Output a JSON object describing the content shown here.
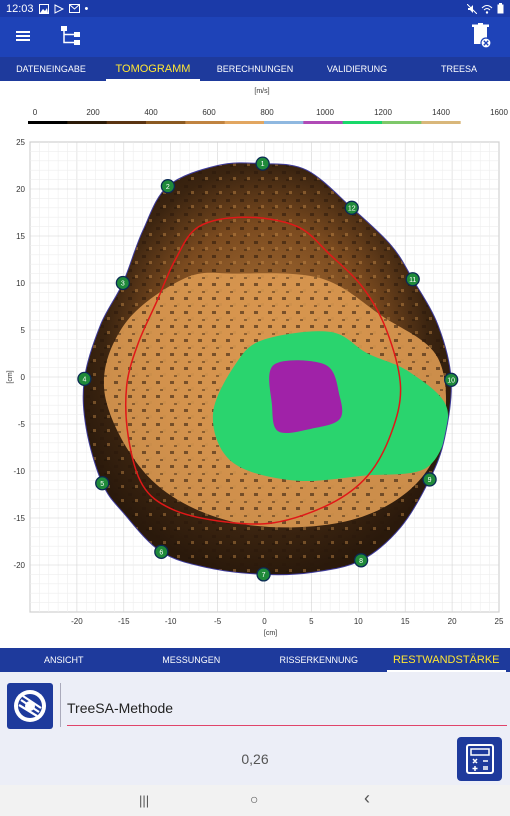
{
  "status": {
    "time": "12:03",
    "dot": "•"
  },
  "tabs": [
    {
      "label": "DATENEINGABE",
      "active": false
    },
    {
      "label": "TOMOGRAMM",
      "active": true
    },
    {
      "label": "BERECHNUNGEN",
      "active": false
    },
    {
      "label": "VALIDIERUNG",
      "active": false
    },
    {
      "label": "TREESA",
      "active": false
    }
  ],
  "colorbar": {
    "unit": "[m/s]",
    "ticks": [
      "0",
      "200",
      "400",
      "600",
      "800",
      "1000",
      "1200",
      "1400",
      "1600"
    ],
    "colors": [
      "#000000",
      "#2a1a08",
      "#5a3412",
      "#8b5a22",
      "#c08340",
      "#e2a660",
      "#8fb8e0",
      "#b04ab6",
      "#18d86a",
      "#7ec86a",
      "#d9b77a",
      "#ffffff"
    ]
  },
  "chart_data": {
    "type": "tomogram",
    "xlabel": "[cm]",
    "ylabel": "[cm]",
    "xlim": [
      -25,
      25
    ],
    "ylim": [
      -25,
      25
    ],
    "xticks": [
      "-20",
      "-15",
      "-10",
      "-5",
      "0",
      "5",
      "10",
      "15",
      "20",
      "25"
    ],
    "yticks": [
      "25",
      "20",
      "15",
      "10",
      "5",
      "0",
      "-5",
      "-10",
      "-15",
      "-20"
    ],
    "grid": true,
    "sensors": [
      {
        "id": "1",
        "x": -0.2,
        "y": 22.7
      },
      {
        "id": "2",
        "x": -10.3,
        "y": 20.3
      },
      {
        "id": "3",
        "x": -15.1,
        "y": 10.0
      },
      {
        "id": "4",
        "x": -19.2,
        "y": -0.2
      },
      {
        "id": "5",
        "x": -17.3,
        "y": -11.3
      },
      {
        "id": "6",
        "x": -11.0,
        "y": -18.6
      },
      {
        "id": "7",
        "x": -0.1,
        "y": -21.0
      },
      {
        "id": "8",
        "x": 10.3,
        "y": -19.5
      },
      {
        "id": "9",
        "x": 17.6,
        "y": -10.9
      },
      {
        "id": "10",
        "x": 19.9,
        "y": -0.3
      },
      {
        "id": "11",
        "x": 15.8,
        "y": 10.4
      },
      {
        "id": "12",
        "x": 9.3,
        "y": 18.0
      }
    ],
    "outline": [
      [
        -0.2,
        22.7
      ],
      [
        4.5,
        22.0
      ],
      [
        9.3,
        18.0
      ],
      [
        13.5,
        14.0
      ],
      [
        15.8,
        10.4
      ],
      [
        18.5,
        5.5
      ],
      [
        19.9,
        -0.3
      ],
      [
        19.2,
        -6.5
      ],
      [
        17.6,
        -10.9
      ],
      [
        14.5,
        -16.0
      ],
      [
        10.3,
        -19.5
      ],
      [
        5.0,
        -20.8
      ],
      [
        -0.1,
        -21.0
      ],
      [
        -6.0,
        -20.3
      ],
      [
        -11.0,
        -18.6
      ],
      [
        -15.0,
        -14.5
      ],
      [
        -17.3,
        -11.3
      ],
      [
        -19.0,
        -5.5
      ],
      [
        -19.2,
        -0.2
      ],
      [
        -17.5,
        5.5
      ],
      [
        -15.1,
        10.0
      ],
      [
        -13.0,
        15.5
      ],
      [
        -10.3,
        20.3
      ],
      [
        -5.0,
        22.5
      ]
    ],
    "red_contour": [
      [
        -2.0,
        17.0
      ],
      [
        3.5,
        16.0
      ],
      [
        7.0,
        13.0
      ],
      [
        10.5,
        9.5
      ],
      [
        13.0,
        5.0
      ],
      [
        14.5,
        -1.0
      ],
      [
        13.5,
        -6.0
      ],
      [
        11.0,
        -10.5
      ],
      [
        7.0,
        -13.5
      ],
      [
        1.0,
        -15.5
      ],
      [
        -5.0,
        -15.3
      ],
      [
        -10.0,
        -14.0
      ],
      [
        -13.0,
        -11.5
      ],
      [
        -14.5,
        -6.5
      ],
      [
        -14.7,
        -1.0
      ],
      [
        -13.5,
        3.5
      ],
      [
        -11.5,
        8.0
      ],
      [
        -9.5,
        12.5
      ],
      [
        -7.0,
        16.0
      ]
    ],
    "zones": {
      "orange": [
        [
          -3.0,
          11.0
        ],
        [
          6.0,
          10.5
        ],
        [
          12.5,
          6.5
        ],
        [
          18.5,
          2.0
        ],
        [
          19.0,
          -6.0
        ],
        [
          15.5,
          -12.0
        ],
        [
          8.0,
          -15.5
        ],
        [
          -3.0,
          -15.5
        ],
        [
          -12.0,
          -11.0
        ],
        [
          -17.0,
          -2.0
        ],
        [
          -15.0,
          5.5
        ],
        [
          -8.5,
          10.5
        ]
      ],
      "green": [
        [
          0.0,
          4.0
        ],
        [
          7.0,
          4.8
        ],
        [
          11.0,
          2.5
        ],
        [
          15.5,
          0.5
        ],
        [
          19.5,
          -3.5
        ],
        [
          17.5,
          -9.5
        ],
        [
          10.5,
          -10.5
        ],
        [
          3.0,
          -11.0
        ],
        [
          -3.5,
          -9.0
        ],
        [
          -5.5,
          -4.0
        ],
        [
          -3.0,
          1.5
        ]
      ],
      "purple": [
        [
          1.0,
          1.3
        ],
        [
          6.5,
          1.3
        ],
        [
          8.0,
          -2.0
        ],
        [
          8.0,
          -4.5
        ],
        [
          5.0,
          -5.5
        ],
        [
          1.5,
          -5.8
        ],
        [
          0.8,
          -3.0
        ]
      ]
    }
  },
  "bottom_tabs": [
    {
      "label": "ANSICHT",
      "active": false
    },
    {
      "label": "MESSUNGEN",
      "active": false
    },
    {
      "label": "RISSERKENNUNG",
      "active": false
    },
    {
      "label": "RESTWANDSTÄRKE",
      "active": true
    }
  ],
  "panel": {
    "method": "TreeSA-Methode",
    "value": "0,26"
  },
  "nav": {
    "recents": "|||",
    "home": "○",
    "back": "‹"
  }
}
